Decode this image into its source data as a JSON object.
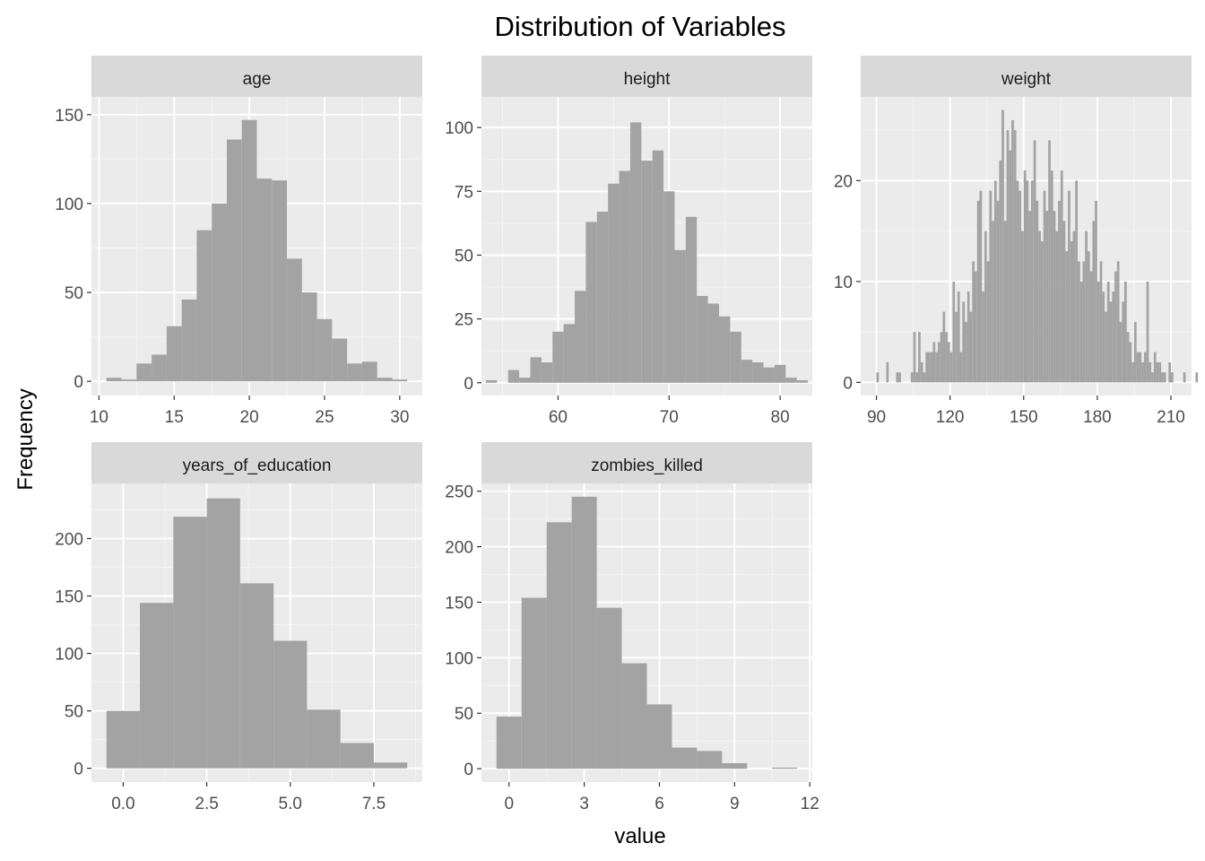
{
  "chart_data": {
    "type": "bar",
    "title": "Distribution of Variables",
    "xlabel": "value",
    "ylabel": "Frequency",
    "grid": true,
    "bar_color": "#a3a3a3",
    "panel_background": "#ebebeb",
    "strip_background": "#d9d9d9",
    "panels": [
      {
        "name": "age",
        "bin_start": 10.5,
        "bin_width": 1,
        "values": [
          2,
          1,
          10,
          15,
          31,
          46,
          85,
          100,
          136,
          147,
          114,
          113,
          69,
          50,
          35,
          24,
          10,
          11,
          2,
          1
        ],
        "xlim": [
          9.5,
          31.5
        ],
        "ylim": [
          -8,
          160
        ],
        "x_ticks": [
          10,
          15,
          20,
          25,
          30
        ],
        "x_tick_labels": [
          "10",
          "15",
          "20",
          "25",
          "30"
        ],
        "y_ticks": [
          0,
          50,
          100,
          150
        ],
        "y_tick_labels": [
          "0",
          "50",
          "100",
          "150"
        ]
      },
      {
        "name": "height",
        "bin_start": 53.5,
        "bin_width": 1,
        "values": [
          1,
          0,
          5,
          2,
          10,
          8,
          20,
          23,
          36,
          63,
          67,
          78,
          83,
          102,
          87,
          91,
          75,
          52,
          65,
          34,
          31,
          26,
          20,
          9,
          8,
          6,
          7,
          2,
          1
        ],
        "xlim": [
          53.1,
          82.9
        ],
        "ylim": [
          -5,
          112
        ],
        "x_ticks": [
          60,
          70,
          80
        ],
        "x_tick_labels": [
          "60",
          "70",
          "80"
        ],
        "y_ticks": [
          0,
          25,
          50,
          75,
          100
        ],
        "y_tick_labels": [
          "0",
          "25",
          "50",
          "75",
          "100"
        ]
      },
      {
        "name": "weight",
        "bin_start": 90,
        "bin_width": 1,
        "values": [
          1,
          0,
          0,
          0,
          2,
          0,
          0,
          0,
          1,
          1,
          0,
          0,
          0,
          0,
          1,
          5,
          1,
          5,
          2,
          1,
          3,
          3,
          3,
          4,
          3,
          4,
          5,
          7,
          5,
          4,
          3,
          10,
          7,
          9,
          3,
          8,
          6,
          9,
          7,
          12,
          11,
          18,
          19,
          9,
          15,
          12,
          19,
          16,
          20,
          18,
          22,
          27,
          16,
          25,
          23,
          26,
          25,
          20,
          19,
          15,
          21,
          20,
          17,
          20,
          24,
          18,
          15,
          14,
          19,
          17,
          24,
          21,
          17,
          15,
          18,
          21,
          16,
          13,
          19,
          14,
          15,
          20,
          12,
          10,
          12,
          15,
          13,
          11,
          16,
          18,
          10,
          12,
          9,
          7,
          10,
          8,
          9,
          11,
          12,
          6,
          8,
          10,
          5,
          4,
          2,
          6,
          3,
          3,
          2,
          3,
          10,
          2,
          1,
          3,
          2,
          2,
          1,
          1,
          0,
          2,
          1,
          0,
          0,
          0,
          0,
          1,
          0,
          0,
          0,
          0,
          1,
          0,
          0,
          0,
          0,
          1,
          0,
          0,
          0,
          0,
          0,
          0,
          0,
          0,
          0,
          0,
          0,
          0,
          0,
          0,
          0,
          0,
          0,
          0,
          0,
          0,
          0,
          0,
          0,
          0,
          0,
          0,
          0,
          0,
          0,
          0,
          0,
          0,
          0,
          0,
          0,
          0,
          0,
          0,
          0,
          0,
          0,
          0,
          0,
          0,
          0,
          0,
          0,
          0,
          0,
          0,
          0,
          0,
          0,
          0,
          0,
          0,
          0,
          0,
          0,
          0,
          0,
          0,
          0,
          0,
          0,
          0,
          0,
          0,
          0,
          0,
          0,
          0,
          0,
          0,
          0,
          0,
          0,
          0,
          0,
          0,
          0,
          0,
          0,
          0,
          0
        ],
        "xlim": [
          83.6,
          218.4
        ],
        "ylim": [
          -1.3,
          28.3
        ],
        "x_ticks": [
          90,
          120,
          150,
          180,
          210
        ],
        "x_tick_labels": [
          "90",
          "120",
          "150",
          "180",
          "210"
        ],
        "y_ticks": [
          0,
          10,
          20
        ],
        "y_tick_labels": [
          "0",
          "10",
          "20"
        ]
      },
      {
        "name": "years_of_education",
        "bin_start": -0.5,
        "bin_width": 1,
        "values": [
          50,
          144,
          219,
          235,
          161,
          111,
          51,
          22,
          5
        ],
        "xlim": [
          -0.95,
          8.95
        ],
        "ylim": [
          -12,
          248
        ],
        "x_ticks": [
          0,
          2.5,
          5,
          7.5
        ],
        "x_tick_labels": [
          "0.0",
          "2.5",
          "5.0",
          "7.5"
        ],
        "y_ticks": [
          0,
          50,
          100,
          150,
          200
        ],
        "y_tick_labels": [
          "0",
          "50",
          "100",
          "150",
          "200"
        ]
      },
      {
        "name": "zombies_killed",
        "bin_start": -0.5,
        "bin_width": 1,
        "values": [
          47,
          154,
          222,
          245,
          145,
          95,
          58,
          19,
          16,
          5,
          0,
          1
        ],
        "xlim": [
          -1.1,
          12.1
        ],
        "ylim": [
          -12,
          257
        ],
        "x_ticks": [
          0,
          3,
          6,
          9,
          12
        ],
        "x_tick_labels": [
          "0",
          "3",
          "6",
          "9",
          "12"
        ],
        "y_ticks": [
          0,
          50,
          100,
          150,
          200,
          250
        ],
        "y_tick_labels": [
          "0",
          "50",
          "100",
          "150",
          "200",
          "250"
        ]
      }
    ]
  }
}
